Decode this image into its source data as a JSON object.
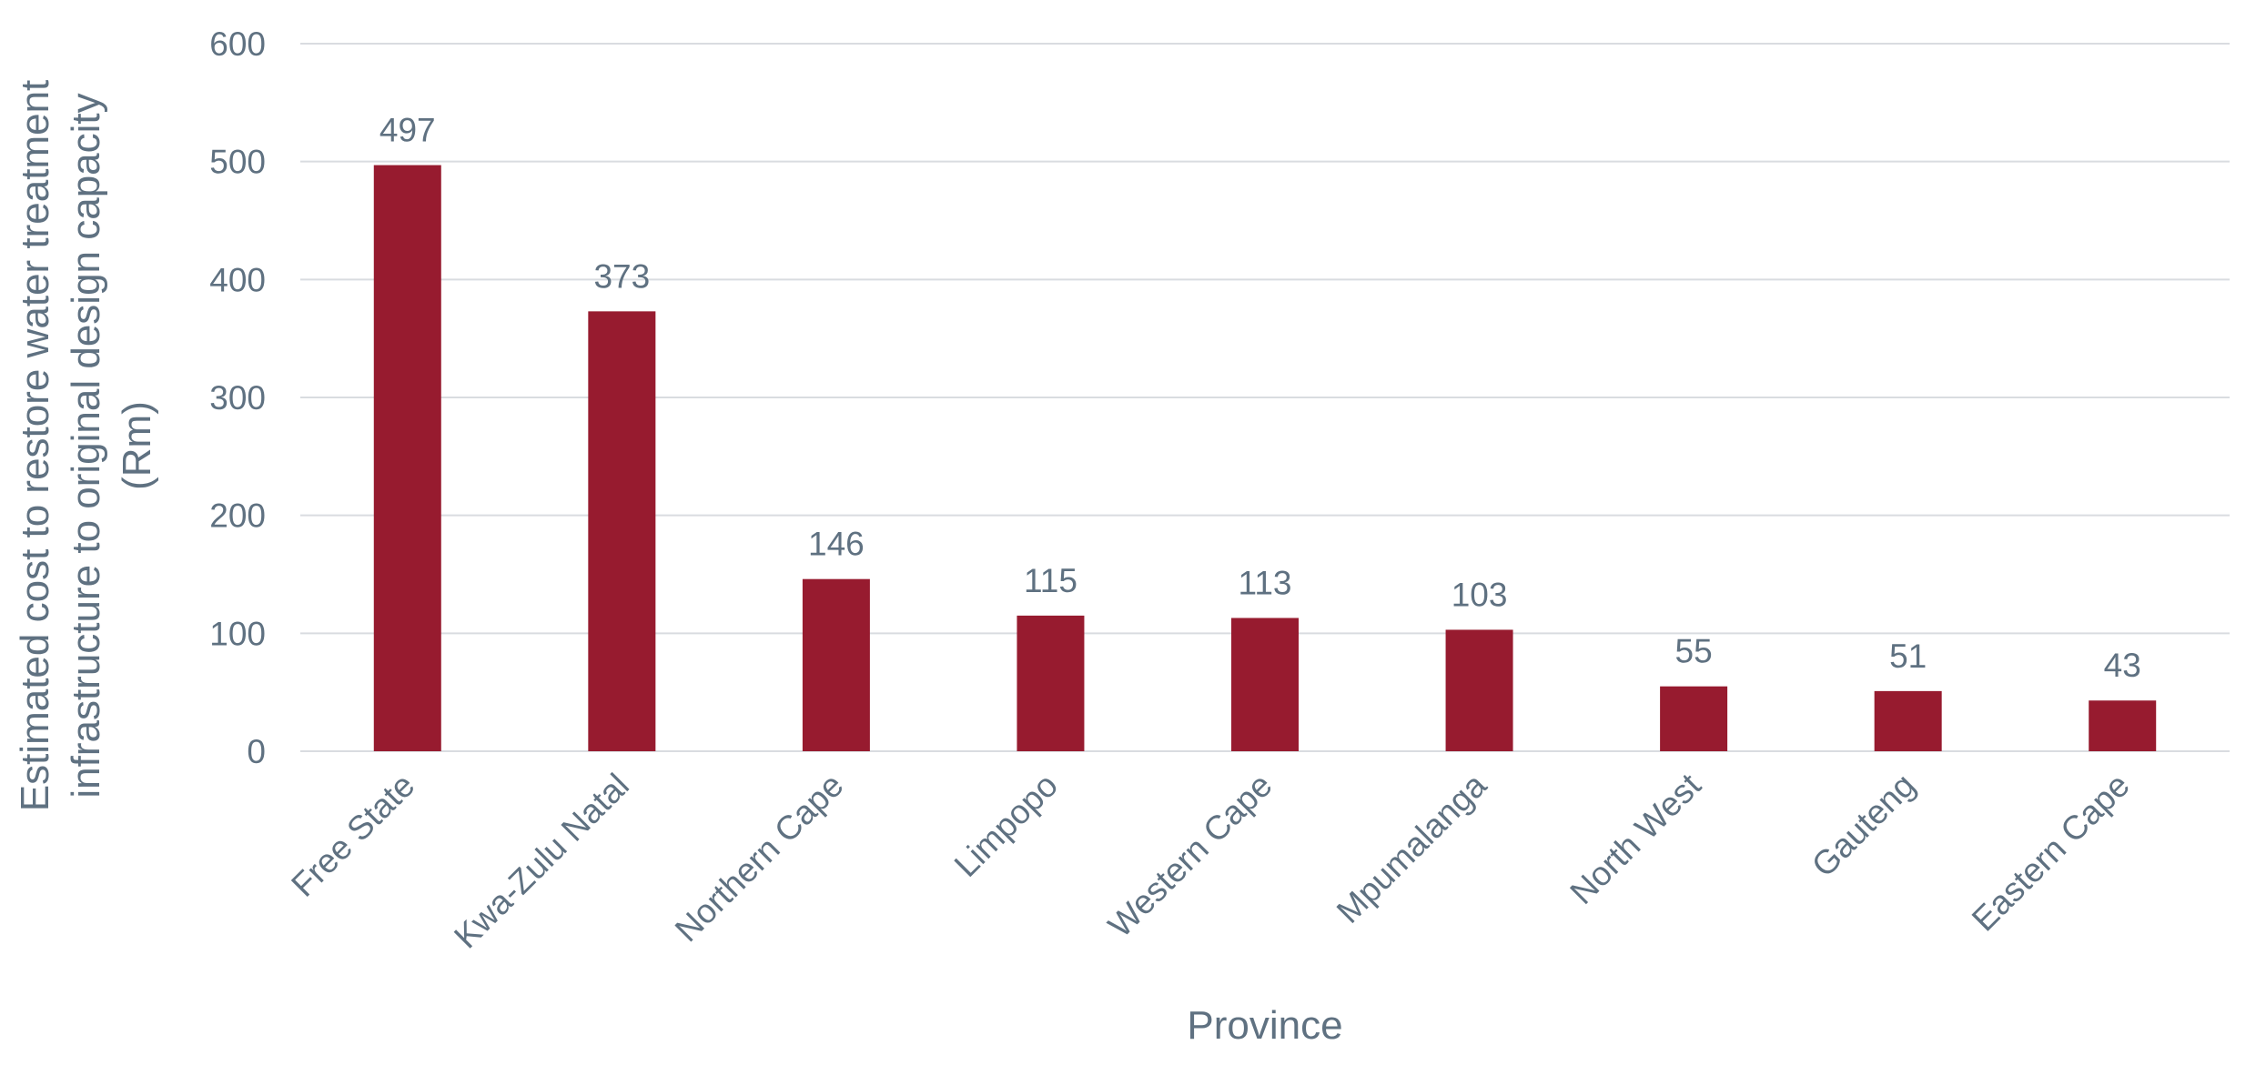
{
  "chart_data": {
    "type": "bar",
    "title": "",
    "xlabel": "Province",
    "ylabel_lines": [
      "Estimated cost to restore water treatment",
      "infrastructure to original design capacity",
      "(Rm)"
    ],
    "categories": [
      "Free State",
      "Kwa-Zulu Natal",
      "Northern Cape",
      "Limpopo",
      "Western Cape",
      "Mpumalanga",
      "North West",
      "Gauteng",
      "Eastern Cape"
    ],
    "values": [
      497,
      373,
      146,
      115,
      113,
      103,
      55,
      51,
      43
    ],
    "ylim": [
      0,
      600
    ],
    "yticks": [
      0,
      100,
      200,
      300,
      400,
      500,
      600
    ],
    "grid": true,
    "legend": "none",
    "data_labels": true,
    "colors": {
      "bar": "#971b2f",
      "text": "#5f7181",
      "grid": "#d9dce0"
    }
  }
}
